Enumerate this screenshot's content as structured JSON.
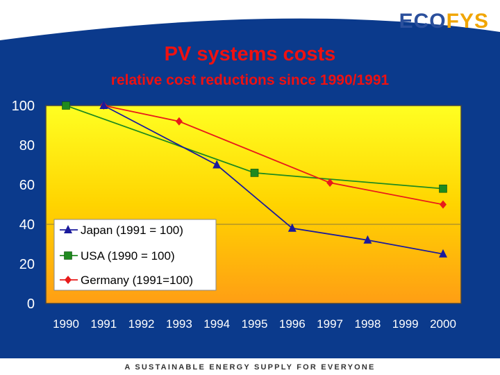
{
  "logo": {
    "part1": "ECO",
    "part2": "FYS"
  },
  "footer": {
    "text": "A SUSTAINABLE ENERGY SUPPLY FOR EVERYONE"
  },
  "colors": {
    "background": "#0b3a8c",
    "title": "#ee1111",
    "japan": "#1a1a9c",
    "usa": "#1f8a1f",
    "germany": "#e81a1a"
  },
  "chart_data": {
    "type": "line",
    "title": "PV systems costs",
    "subtitle": "relative cost reductions since 1990/1991",
    "xlabel": "",
    "ylabel": "",
    "xlim": [
      1990,
      2000
    ],
    "ylim": [
      0,
      100
    ],
    "x_ticks": [
      "1990",
      "1991",
      "1992",
      "1993",
      "1994",
      "1995",
      "1996",
      "1997",
      "1998",
      "1999",
      "2000"
    ],
    "y_ticks": [
      "0",
      "20",
      "40",
      "60",
      "80",
      "100"
    ],
    "legend_position": "bottom-left",
    "series": [
      {
        "name": "Japan (1991 = 100)",
        "marker": "triangle",
        "color": "#1a1a9c",
        "points": [
          [
            1991,
            100
          ],
          [
            1994,
            70
          ],
          [
            1996,
            38
          ],
          [
            1998,
            32
          ],
          [
            2000,
            25
          ]
        ]
      },
      {
        "name": "USA (1990 = 100)",
        "marker": "square",
        "color": "#1f8a1f",
        "points": [
          [
            1990,
            100
          ],
          [
            1995,
            66
          ],
          [
            2000,
            58
          ]
        ]
      },
      {
        "name": "Germany (1991=100)",
        "marker": "diamond",
        "color": "#e81a1a",
        "points": [
          [
            1991,
            100
          ],
          [
            1993,
            92
          ],
          [
            1997,
            61
          ],
          [
            2000,
            50
          ]
        ]
      }
    ]
  }
}
